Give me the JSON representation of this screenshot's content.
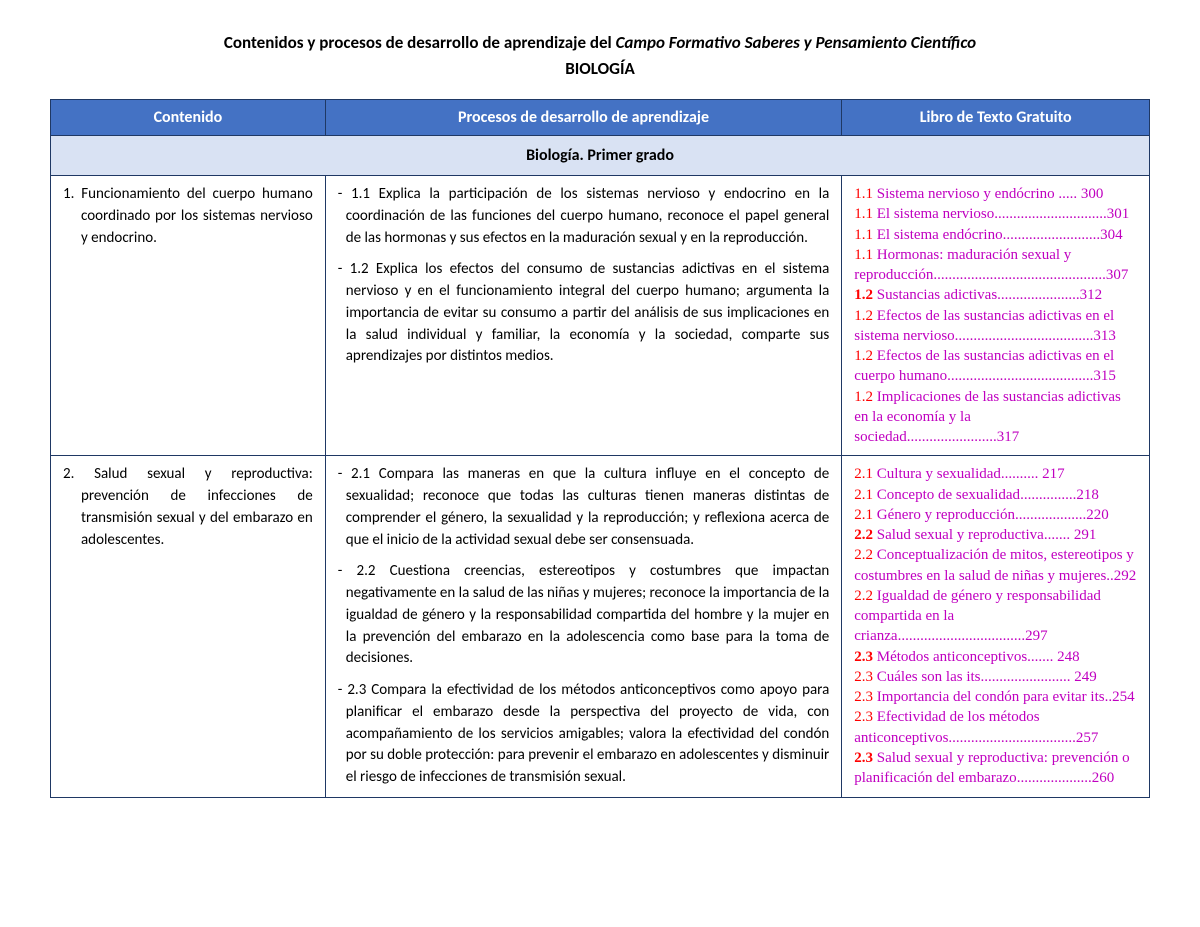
{
  "colors": {
    "header_bg": "#4472c4",
    "header_text": "#ffffff",
    "border": "#1f3864",
    "section_bg": "#d9e2f3",
    "ref_num": "#ff0000",
    "ref_text": "#c000c0",
    "body_bg": "#ffffff"
  },
  "columns_pct": [
    25,
    47,
    28
  ],
  "title": {
    "line1_prefix": "Contenidos y procesos de desarrollo de aprendizaje del ",
    "line1_italic": "Campo Formativo Saberes y Pensamiento Científico",
    "line2": "BIOLOGÍA"
  },
  "headers": {
    "col1": "Contenido",
    "col2": "Procesos de desarrollo de aprendizaje",
    "col3": "Libro de Texto Gratuito"
  },
  "section": "Biología. Primer grado",
  "rows": [
    {
      "contenido_num": "1.",
      "contenido": "Funcionamiento del cuerpo humano coordinado por los sistemas nervioso y endocrino.",
      "procesos": [
        {
          "num": "- 1.1",
          "text": "Explica la participación de los sistemas nervioso y endocrino en la coordinación de las funciones del cuerpo humano, reconoce el papel general de las hormonas y sus efectos en la maduración sexual y en la reproducción."
        },
        {
          "num": "- 1.2",
          "text": "Explica los efectos del consumo de sustancias adictivas en el sistema nervioso y en el funcionamiento integral del cuerpo humano; argumenta la importancia de evitar su consumo a partir del análisis de sus implicaciones en la salud individual y familiar, la economía y la sociedad, comparte sus aprendizajes por distintos medios."
        }
      ],
      "refs": [
        {
          "num": "1.1",
          "bold": false,
          "text": "Sistema nervioso y endócrino",
          "dots": " ..... ",
          "page": "300",
          "break_before_page": true
        },
        {
          "num": "1.1",
          "bold": false,
          "text": "El sistema nervioso",
          "dots": "..............................",
          "page": "301",
          "break_before_page": false,
          "break_mid": true
        },
        {
          "num": "1.1",
          "bold": false,
          "text": "El sistema endócrino",
          "dots": "..........................",
          "page": "304",
          "break_before_page": false,
          "break_mid": true
        },
        {
          "num": "1.1",
          "bold": false,
          "text": "Hormonas: maduración sexual y reproducción",
          "dots": "..............................................",
          "page": "307",
          "break_before_page": true
        },
        {
          "num": "1.2",
          "bold": true,
          "text": "Sustancias adictivas",
          "dots": "......................",
          "page": "312",
          "break_before_page": true
        },
        {
          "num": "1.2",
          "bold": false,
          "text": "Efectos de las sustancias adictivas en el sistema nervioso",
          "dots": ".....................................",
          "page": "313"
        },
        {
          "num": "1.2",
          "bold": false,
          "text": "Efectos de las sustancias adictivas en el cuerpo humano",
          "dots": ".......................................",
          "page": "315"
        },
        {
          "num": "1.2",
          "bold": false,
          "text": "Implicaciones de las sustancias adictivas en la economía y la sociedad",
          "dots": "........................",
          "page": "317"
        }
      ]
    },
    {
      "contenido_num": "2.",
      "contenido": "Salud sexual y reproductiva: prevención de infecciones de transmisión sexual y del embarazo en adolescentes.",
      "procesos": [
        {
          "num": "- 2.1",
          "text": "Compara las maneras en que la cultura influye en el concepto de sexualidad; reconoce que todas las culturas tienen maneras distintas de comprender el género, la sexualidad y la reproducción; y reflexiona acerca de que el inicio de la actividad sexual debe ser consensuada."
        },
        {
          "num": "- 2.2",
          "text": "Cuestiona creencias, estereotipos y costumbres que impactan negativamente en la salud de las niñas y mujeres; reconoce la importancia de la igualdad de género y la responsabilidad compartida del hombre y la mujer en la prevención del embarazo en la adolescencia como base para la toma de decisiones."
        },
        {
          "num": "- 2.3",
          "text": "Compara la efectividad de los métodos anticonceptivos como apoyo para planificar el embarazo desde la perspectiva del proyecto de vida, con acompañamiento de los servicios amigables; valora la efectividad del condón por su doble protección: para prevenir el embarazo en adolescentes y disminuir el riesgo de infecciones de transmisión sexual."
        }
      ],
      "refs": [
        {
          "num": "2.1",
          "bold": false,
          "text": "Cultura y sexualidad",
          "dots": "..........",
          "page": " 217"
        },
        {
          "num": "2.1",
          "bold": false,
          "text": "Concepto de sexualidad",
          "dots": "...............",
          "page": "218"
        },
        {
          "num": "2.1",
          "bold": false,
          "text": "Género y reproducción",
          "dots": "...................",
          "page": "220"
        },
        {
          "num": "2.2",
          "bold": true,
          "text": "Salud sexual y reproductiva",
          "dots": ".......",
          "page": " 291"
        },
        {
          "num": "2.2",
          "bold": false,
          "text": "Conceptualización de mitos, estereotipos y costumbres en la salud de niñas y mujeres",
          "dots": "..",
          "page": "292"
        },
        {
          "num": "2.2",
          "bold": false,
          "text": "Igualdad de género y responsabilidad compartida en la crianza",
          "dots": "..................................",
          "page": "297"
        },
        {
          "num": "2.3",
          "bold": true,
          "text": "Métodos anticonceptivos",
          "dots": ".......",
          "page": " 248"
        },
        {
          "num": "2.3",
          "bold": false,
          "text": "Cuáles son las its",
          "dots": "........................",
          "page": " 249"
        },
        {
          "num": "2.3",
          "bold": false,
          "text": "Importancia del condón para evitar its",
          "dots": "..",
          "page": "254"
        },
        {
          "num": "2.3",
          "bold": false,
          "text": "Efectividad de los métodos anticonceptivos",
          "dots": "..................................",
          "page": "257"
        },
        {
          "num": "2.3",
          "bold": true,
          "text": "Salud sexual y reproductiva: prevención o planificación del embarazo",
          "dots": "....................",
          "page": "260"
        }
      ]
    }
  ]
}
